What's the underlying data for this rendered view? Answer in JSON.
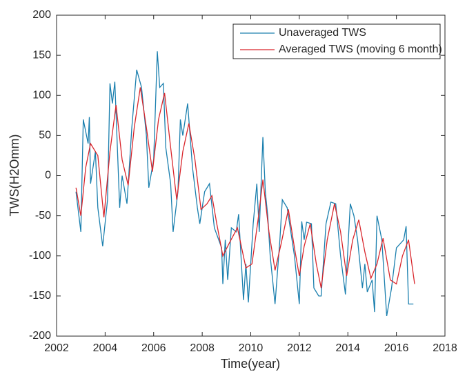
{
  "chart_data": {
    "type": "line",
    "xlabel": "Time(year)",
    "ylabel": "TWS(H2Omm)",
    "xlim": [
      2002,
      2018
    ],
    "xticks": [
      2002,
      2004,
      2006,
      2008,
      2010,
      2012,
      2014,
      2016,
      2018
    ],
    "ylim": [
      -200,
      200
    ],
    "yticks": [
      -200,
      -150,
      -100,
      -50,
      0,
      50,
      100,
      150,
      200
    ],
    "grid": false,
    "legend_position": "upper-right",
    "series": [
      {
        "name": "Unaveraged TWS",
        "color": "#1a7fae",
        "x": [
          2002.8,
          2003.0,
          2003.1,
          2003.3,
          2003.35,
          2003.4,
          2003.6,
          2003.7,
          2003.9,
          2004.1,
          2004.2,
          2004.3,
          2004.4,
          2004.6,
          2004.7,
          2004.9,
          2005.1,
          2005.3,
          2005.5,
          2005.7,
          2005.8,
          2006.0,
          2006.15,
          2006.25,
          2006.4,
          2006.5,
          2006.7,
          2006.8,
          2007.0,
          2007.1,
          2007.2,
          2007.4,
          2007.6,
          2007.8,
          2007.9,
          2008.1,
          2008.3,
          2008.5,
          2008.8,
          2008.85,
          2008.95,
          2009.05,
          2009.2,
          2009.4,
          2009.5,
          2009.7,
          2009.8,
          2009.9,
          2010.1,
          2010.25,
          2010.35,
          2010.5,
          2010.6,
          2010.7,
          2010.8,
          2011.0,
          2011.2,
          2011.3,
          2011.5,
          2011.8,
          2012.0,
          2012.1,
          2012.2,
          2012.3,
          2012.5,
          2012.6,
          2012.8,
          2012.9,
          2013.1,
          2013.3,
          2013.5,
          2013.7,
          2013.9,
          2014.1,
          2014.25,
          2014.4,
          2014.6,
          2014.7,
          2014.8,
          2015.0,
          2015.1,
          2015.2,
          2015.4,
          2015.6,
          2015.8,
          2016.0,
          2016.3,
          2016.4,
          2016.5,
          2016.7
        ],
        "values": [
          -20,
          -70,
          70,
          40,
          73,
          -10,
          30,
          -40,
          -88,
          -30,
          115,
          90,
          117,
          -40,
          0,
          -35,
          60,
          132,
          110,
          50,
          -15,
          20,
          155,
          110,
          115,
          35,
          -10,
          -70,
          -20,
          70,
          50,
          90,
          10,
          -40,
          -60,
          -20,
          -10,
          -65,
          -90,
          -135,
          -80,
          -130,
          -65,
          -70,
          -48,
          -155,
          -110,
          -158,
          -60,
          -10,
          -70,
          48,
          -20,
          -50,
          -100,
          -160,
          -80,
          -30,
          -40,
          -100,
          -160,
          -57,
          -80,
          -58,
          -60,
          -140,
          -150,
          -150,
          -60,
          -33,
          -35,
          -100,
          -148,
          -35,
          -50,
          -80,
          -140,
          -110,
          -145,
          -130,
          -170,
          -50,
          -80,
          -175,
          -140,
          -90,
          -80,
          -63,
          -160,
          -160
        ]
      },
      {
        "name": "Averaged TWS (moving 6 month)",
        "color": "#d9262c",
        "x": [
          2002.8,
          2003.0,
          2003.2,
          2003.4,
          2003.7,
          2003.95,
          2004.2,
          2004.45,
          2004.7,
          2004.95,
          2005.2,
          2005.45,
          2005.7,
          2005.95,
          2006.2,
          2006.45,
          2006.7,
          2006.95,
          2007.2,
          2007.45,
          2007.7,
          2007.95,
          2008.2,
          2008.4,
          2008.6,
          2008.85,
          2009.1,
          2009.45,
          2009.8,
          2010.05,
          2010.3,
          2010.5,
          2010.75,
          2011.0,
          2011.25,
          2011.55,
          2011.8,
          2012.0,
          2012.2,
          2012.45,
          2012.7,
          2012.9,
          2013.15,
          2013.45,
          2013.7,
          2013.95,
          2014.2,
          2014.45,
          2014.7,
          2014.95,
          2015.2,
          2015.45,
          2015.75,
          2016.0,
          2016.25,
          2016.5,
          2016.75
        ],
        "values": [
          -15,
          -50,
          10,
          40,
          25,
          -52,
          30,
          88,
          20,
          -12,
          60,
          110,
          60,
          5,
          70,
          103,
          35,
          -30,
          30,
          65,
          20,
          -42,
          -35,
          -25,
          -60,
          -100,
          -85,
          -65,
          -115,
          -110,
          -55,
          -5,
          -70,
          -118,
          -85,
          -42,
          -90,
          -125,
          -88,
          -60,
          -110,
          -140,
          -80,
          -35,
          -70,
          -125,
          -80,
          -55,
          -95,
          -128,
          -110,
          -78,
          -130,
          -135,
          -100,
          -80,
          -135
        ]
      }
    ]
  }
}
